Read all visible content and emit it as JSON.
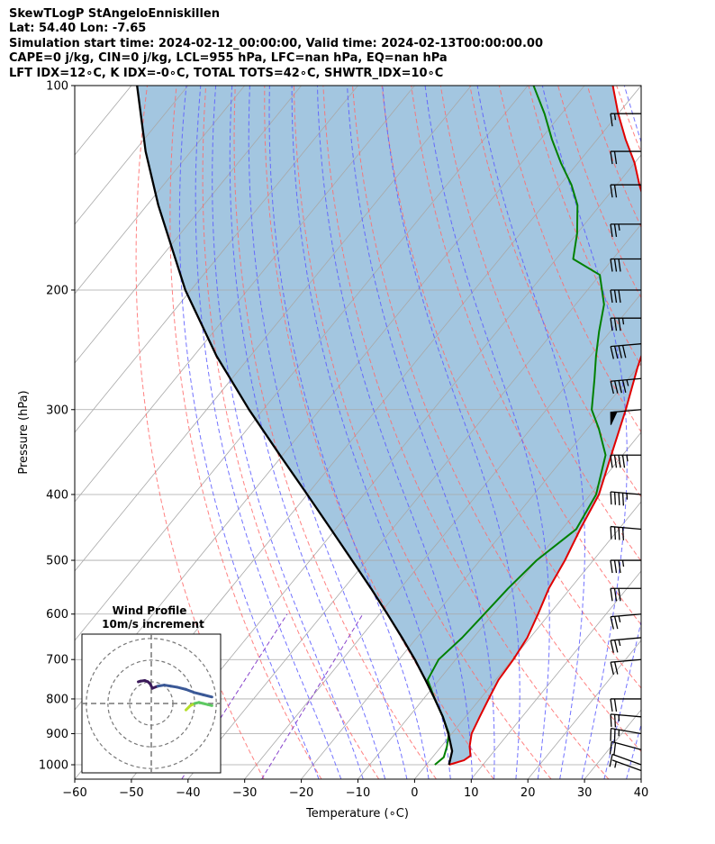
{
  "header": {
    "line1": "SkewTLogP StAngeloEnniskillen",
    "line2": "Lat: 54.40   Lon: -7.65",
    "line3": "Simulation start time: 2024-02-12_00:00:00, Valid time: 2024-02-13T00:00:00.00",
    "line4": "CAPE=0 j/kg, CIN=0 j/kg, LCL=955 hPa, LFC=nan hPa, EQ=nan hPa",
    "line5": "LFT IDX=12∘C, K IDX=-0∘C, TOTAL TOTS=42∘C, SHWTR_IDX=10∘C"
  },
  "chart_data": {
    "type": "line",
    "title": "SkewTLogP StAngeloEnniskillen",
    "xlabel": "Temperature (∘C)",
    "ylabel": "Pressure (hPa)",
    "xlim": [
      -60,
      40
    ],
    "ylim": [
      1050,
      100
    ],
    "x_ticks": [
      "−60",
      "−50",
      "−40",
      "−30",
      "−20",
      "−10",
      "0",
      "10",
      "20",
      "30",
      "40"
    ],
    "y_ticks": [
      "100",
      "200",
      "300",
      "400",
      "500",
      "600",
      "700",
      "800",
      "900",
      "1000"
    ],
    "colors": {
      "temperature": "#e00000",
      "dewpoint": "#008000",
      "parcel": "#000000",
      "fill": "#a3c6e0",
      "isotherm": "#a8a8a8",
      "dry_adiabat": "#ff6b6b",
      "moist_adiabat": "#5a5aff",
      "mixing_ratio": "#8844cc"
    },
    "series": [
      {
        "name": "Temperature",
        "points": [
          [
            4,
            1000
          ],
          [
            6,
            985
          ],
          [
            6.5,
            970
          ],
          [
            5,
            940
          ],
          [
            3.5,
            900
          ],
          [
            2.5,
            850
          ],
          [
            1.5,
            800
          ],
          [
            0.5,
            750
          ],
          [
            0.2,
            700
          ],
          [
            -0.5,
            650
          ],
          [
            -2,
            600
          ],
          [
            -3.8,
            550
          ],
          [
            -5,
            500
          ],
          [
            -6.8,
            450
          ],
          [
            -8.5,
            400
          ],
          [
            -12,
            350
          ],
          [
            -16,
            300
          ],
          [
            -20,
            260
          ],
          [
            -22,
            240
          ],
          [
            -25,
            220
          ],
          [
            -28,
            200
          ],
          [
            -33,
            180
          ],
          [
            -38,
            160
          ],
          [
            -42,
            150
          ],
          [
            -46,
            140
          ],
          [
            -50,
            130
          ],
          [
            -55,
            120
          ],
          [
            -60,
            110
          ],
          [
            -65,
            100
          ]
        ]
      },
      {
        "name": "Dewpoint",
        "points": [
          [
            1.5,
            1000
          ],
          [
            2,
            975
          ],
          [
            1,
            940
          ],
          [
            -0.5,
            900
          ],
          [
            -4,
            850
          ],
          [
            -8,
            800
          ],
          [
            -12,
            750
          ],
          [
            -13,
            700
          ],
          [
            -12,
            650
          ],
          [
            -11.5,
            600
          ],
          [
            -11,
            550
          ],
          [
            -10,
            500
          ],
          [
            -7.5,
            450
          ],
          [
            -9,
            400
          ],
          [
            -13,
            350
          ],
          [
            -18,
            320
          ],
          [
            -22,
            300
          ],
          [
            -26,
            270
          ],
          [
            -29,
            250
          ],
          [
            -32,
            230
          ],
          [
            -35,
            210
          ],
          [
            -40,
            190
          ],
          [
            -47,
            180
          ],
          [
            -50,
            165
          ],
          [
            -54,
            150
          ],
          [
            -58,
            140
          ],
          [
            -63,
            130
          ],
          [
            -68,
            120
          ],
          [
            -73,
            110
          ],
          [
            -79,
            100
          ]
        ]
      },
      {
        "name": "Parcel",
        "points": [
          [
            4,
            1000
          ],
          [
            2.6,
            955
          ],
          [
            -0.6,
            900
          ],
          [
            -4,
            850
          ],
          [
            -8,
            800
          ],
          [
            -12.4,
            750
          ],
          [
            -17.2,
            700
          ],
          [
            -22.6,
            650
          ],
          [
            -28.6,
            600
          ],
          [
            -35.2,
            550
          ],
          [
            -42.6,
            500
          ],
          [
            -50.8,
            450
          ],
          [
            -60,
            400
          ],
          [
            -70.5,
            350
          ],
          [
            -82.5,
            300
          ],
          [
            -96,
            250
          ],
          [
            -111,
            200
          ],
          [
            -128,
            150
          ],
          [
            -138,
            125
          ],
          [
            -149,
            100
          ]
        ]
      }
    ],
    "wind_barbs": [
      {
        "p": 1020,
        "dir": 250,
        "spd": 5
      },
      {
        "p": 1000,
        "dir": 250,
        "spd": 10
      },
      {
        "p": 950,
        "dir": 255,
        "spd": 20
      },
      {
        "p": 900,
        "dir": 260,
        "spd": 25
      },
      {
        "p": 850,
        "dir": 265,
        "spd": 25
      },
      {
        "p": 800,
        "dir": 270,
        "spd": 20
      },
      {
        "p": 700,
        "dir": 275,
        "spd": 20
      },
      {
        "p": 650,
        "dir": 275,
        "spd": 25
      },
      {
        "p": 600,
        "dir": 275,
        "spd": 25
      },
      {
        "p": 550,
        "dir": 270,
        "spd": 30
      },
      {
        "p": 500,
        "dir": 270,
        "spd": 35
      },
      {
        "p": 450,
        "dir": 265,
        "spd": 40
      },
      {
        "p": 400,
        "dir": 265,
        "spd": 45
      },
      {
        "p": 350,
        "dir": 270,
        "spd": 45
      },
      {
        "p": 300,
        "dir": 275,
        "spd": 50
      },
      {
        "p": 270,
        "dir": 275,
        "spd": 45
      },
      {
        "p": 240,
        "dir": 275,
        "spd": 40
      },
      {
        "p": 220,
        "dir": 270,
        "spd": 35
      },
      {
        "p": 200,
        "dir": 270,
        "spd": 30
      },
      {
        "p": 180,
        "dir": 270,
        "spd": 30
      },
      {
        "p": 160,
        "dir": 270,
        "spd": 25
      },
      {
        "p": 140,
        "dir": 270,
        "spd": 20
      },
      {
        "p": 125,
        "dir": 270,
        "spd": 20
      },
      {
        "p": 110,
        "dir": 270,
        "spd": 15
      }
    ],
    "hodograph": {
      "title": "Wind Profile",
      "subtitle": "10m/s increment",
      "rings": [
        10,
        20,
        30
      ],
      "max": 32,
      "trace": [
        [
          -6,
          10
        ],
        [
          -5,
          10.3
        ],
        [
          -3,
          10.6
        ],
        [
          -1.5,
          10
        ],
        [
          -0.5,
          9
        ],
        [
          0.5,
          7
        ],
        [
          3,
          8
        ],
        [
          6,
          8.5
        ],
        [
          9,
          8
        ],
        [
          12,
          7.5
        ],
        [
          16,
          6.5
        ],
        [
          20,
          5
        ],
        [
          24,
          4
        ],
        [
          28,
          3
        ]
      ],
      "trace2": [
        [
          16,
          -3
        ],
        [
          18,
          -1
        ],
        [
          20,
          0
        ],
        [
          22,
          0.5
        ],
        [
          24,
          0
        ],
        [
          26,
          -0.5
        ],
        [
          28,
          -1
        ]
      ]
    }
  }
}
